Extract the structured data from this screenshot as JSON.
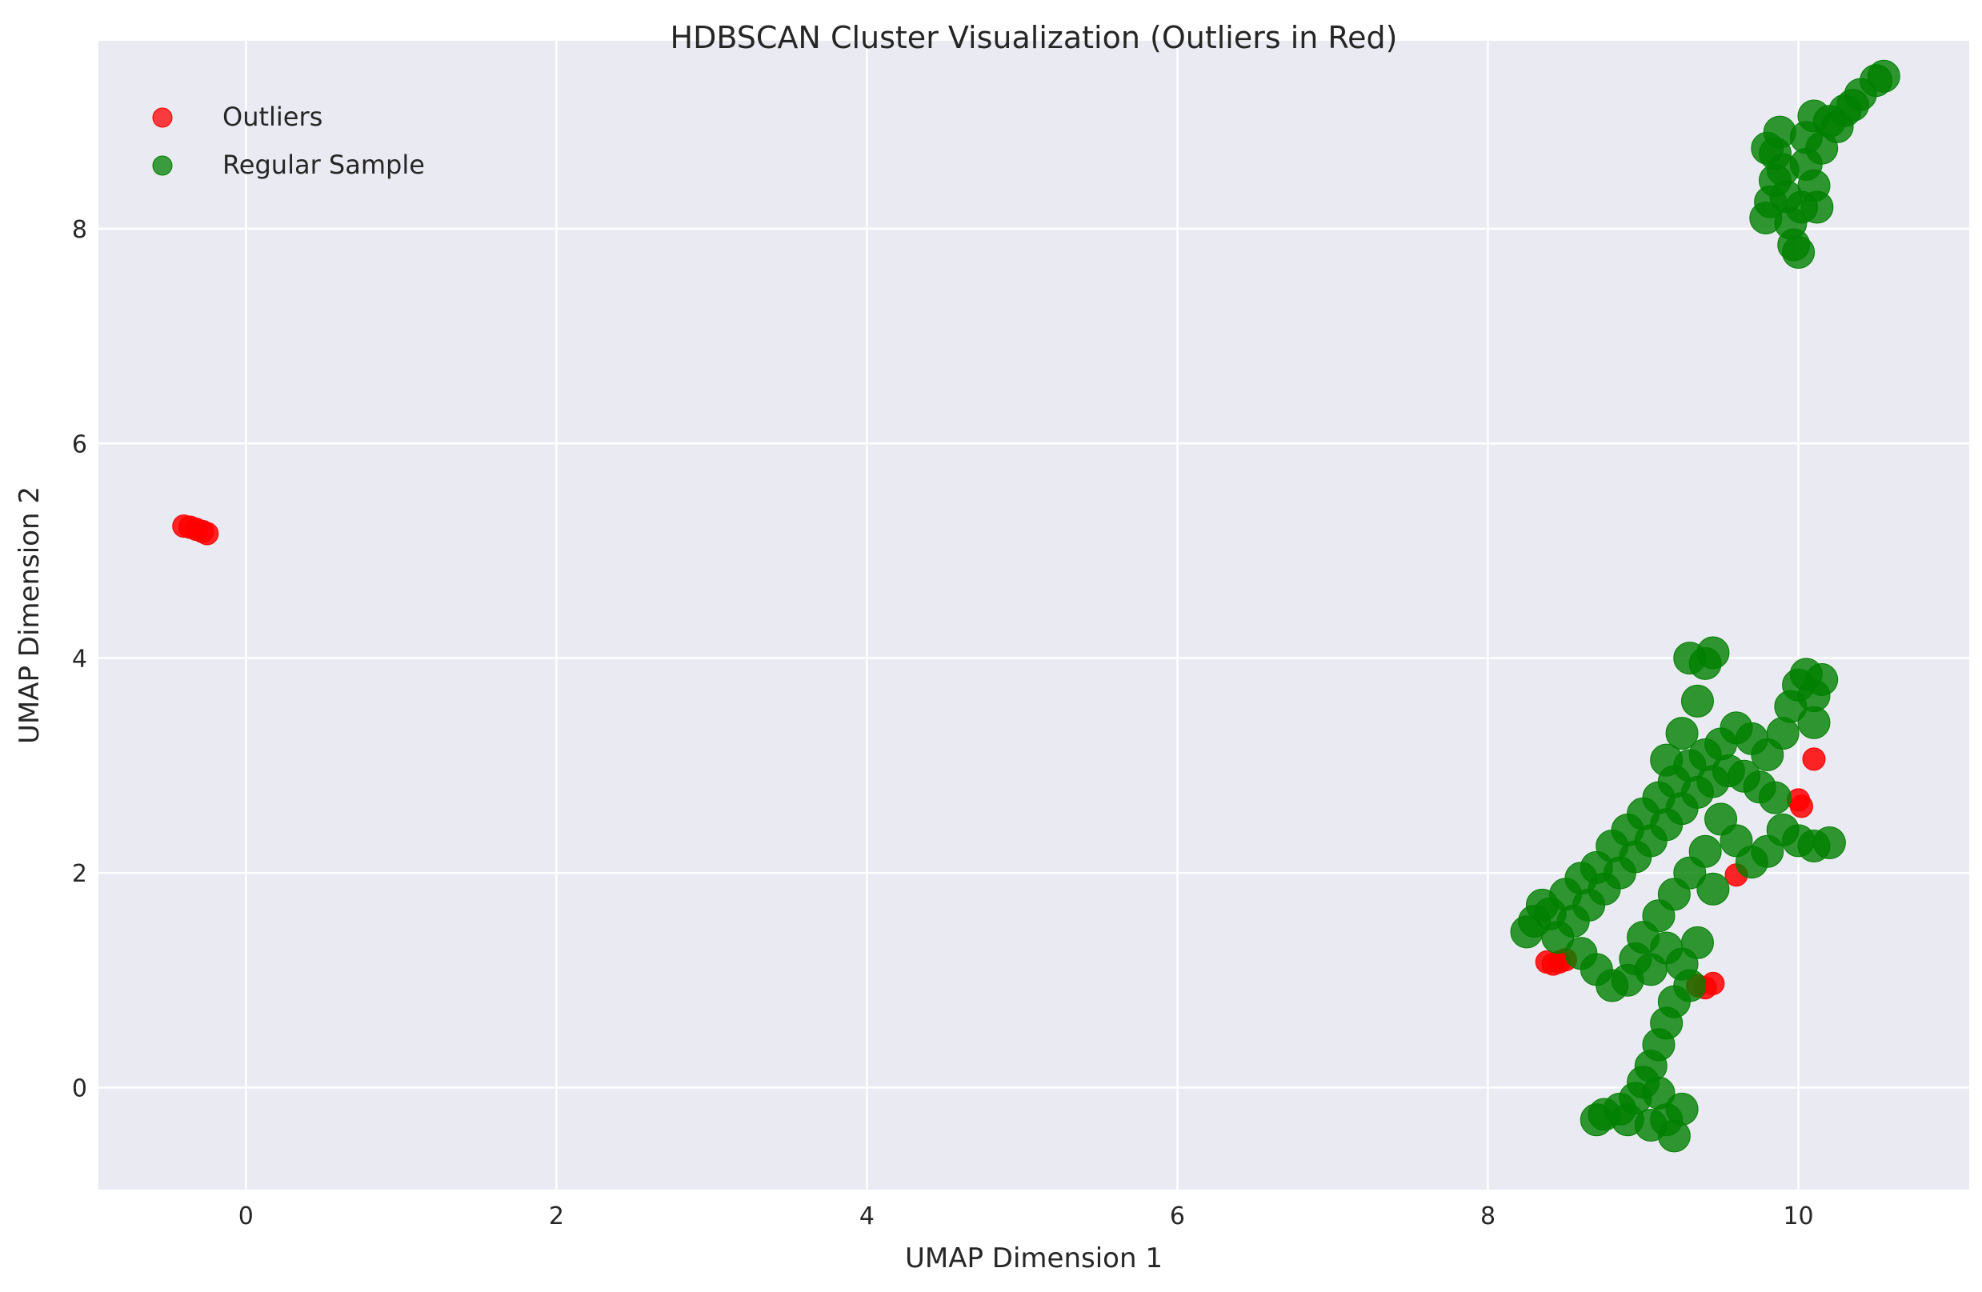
{
  "chart_data": {
    "type": "scatter",
    "title": "HDBSCAN Cluster Visualization (Outliers in Red)",
    "xlabel": "UMAP Dimension 1",
    "ylabel": "UMAP Dimension 2",
    "xlim": [
      -0.95,
      11.1
    ],
    "ylim": [
      -0.95,
      9.75
    ],
    "xticks": [
      0,
      2,
      4,
      6,
      8,
      10
    ],
    "yticks": [
      0,
      2,
      4,
      6,
      8
    ],
    "grid": true,
    "legend_position": "top-left",
    "background_color": "#eaeaf2",
    "series": [
      {
        "name": "Outliers",
        "color": "#ff0000",
        "points": [
          [
            -0.4,
            5.23
          ],
          [
            -0.36,
            5.22
          ],
          [
            -0.32,
            5.2
          ],
          [
            -0.28,
            5.18
          ],
          [
            -0.25,
            5.16
          ],
          [
            8.38,
            1.17
          ],
          [
            8.42,
            1.15
          ],
          [
            8.46,
            1.17
          ],
          [
            8.5,
            1.19
          ],
          [
            10.1,
            3.06
          ],
          [
            10.0,
            2.68
          ],
          [
            10.02,
            2.62
          ],
          [
            9.6,
            1.98
          ],
          [
            9.35,
            0.95
          ],
          [
            9.4,
            0.93
          ],
          [
            9.45,
            0.97
          ]
        ]
      },
      {
        "name": "Regular Sample",
        "color": "#008000",
        "points": [
          [
            9.79,
            8.1
          ],
          [
            9.82,
            8.25
          ],
          [
            9.85,
            8.45
          ],
          [
            9.85,
            8.7
          ],
          [
            9.9,
            8.55
          ],
          [
            9.92,
            8.3
          ],
          [
            9.95,
            8.05
          ],
          [
            9.97,
            7.85
          ],
          [
            10.0,
            7.78
          ],
          [
            10.02,
            8.2
          ],
          [
            10.05,
            8.6
          ],
          [
            10.05,
            8.85
          ],
          [
            10.1,
            8.4
          ],
          [
            10.15,
            8.75
          ],
          [
            10.2,
            9.0
          ],
          [
            10.3,
            9.1
          ],
          [
            10.4,
            9.25
          ],
          [
            10.5,
            9.38
          ],
          [
            10.55,
            9.42
          ],
          [
            10.1,
            9.05
          ],
          [
            10.25,
            8.95
          ],
          [
            10.35,
            9.15
          ],
          [
            9.88,
            8.9
          ],
          [
            9.8,
            8.75
          ],
          [
            10.12,
            8.2
          ],
          [
            8.25,
            1.45
          ],
          [
            8.3,
            1.55
          ],
          [
            8.35,
            1.7
          ],
          [
            8.4,
            1.62
          ],
          [
            8.45,
            1.4
          ],
          [
            8.5,
            1.8
          ],
          [
            8.55,
            1.55
          ],
          [
            8.6,
            1.95
          ],
          [
            8.65,
            1.7
          ],
          [
            8.7,
            2.05
          ],
          [
            8.75,
            1.85
          ],
          [
            8.8,
            2.25
          ],
          [
            8.85,
            2.0
          ],
          [
            8.9,
            2.4
          ],
          [
            8.95,
            2.15
          ],
          [
            9.0,
            2.55
          ],
          [
            9.05,
            2.3
          ],
          [
            9.1,
            2.7
          ],
          [
            9.15,
            2.45
          ],
          [
            9.2,
            2.85
          ],
          [
            9.25,
            2.6
          ],
          [
            9.3,
            3.0
          ],
          [
            9.35,
            2.75
          ],
          [
            9.4,
            3.1
          ],
          [
            9.45,
            2.85
          ],
          [
            9.5,
            3.2
          ],
          [
            9.55,
            2.95
          ],
          [
            9.6,
            3.35
          ],
          [
            9.65,
            2.9
          ],
          [
            9.7,
            3.25
          ],
          [
            9.75,
            2.8
          ],
          [
            9.8,
            3.1
          ],
          [
            9.85,
            2.7
          ],
          [
            9.9,
            3.3
          ],
          [
            9.95,
            3.55
          ],
          [
            10.0,
            3.75
          ],
          [
            10.05,
            3.85
          ],
          [
            10.1,
            3.65
          ],
          [
            10.15,
            3.8
          ],
          [
            10.1,
            3.4
          ],
          [
            9.9,
            2.4
          ],
          [
            10.0,
            2.3
          ],
          [
            10.1,
            2.25
          ],
          [
            10.2,
            2.28
          ],
          [
            9.8,
            2.2
          ],
          [
            9.7,
            2.1
          ],
          [
            9.6,
            2.3
          ],
          [
            9.5,
            2.5
          ],
          [
            9.4,
            2.2
          ],
          [
            9.3,
            2.0
          ],
          [
            9.2,
            1.8
          ],
          [
            9.1,
            1.6
          ],
          [
            9.0,
            1.4
          ],
          [
            8.95,
            1.2
          ],
          [
            8.9,
            1.0
          ],
          [
            9.05,
            1.1
          ],
          [
            9.15,
            1.3
          ],
          [
            9.25,
            1.15
          ],
          [
            9.35,
            1.35
          ],
          [
            9.3,
            0.95
          ],
          [
            9.2,
            0.8
          ],
          [
            9.15,
            0.6
          ],
          [
            9.1,
            0.4
          ],
          [
            9.05,
            0.2
          ],
          [
            9.0,
            0.05
          ],
          [
            8.95,
            -0.1
          ],
          [
            8.85,
            -0.2
          ],
          [
            8.75,
            -0.25
          ],
          [
            8.7,
            -0.3
          ],
          [
            8.9,
            -0.3
          ],
          [
            9.05,
            -0.35
          ],
          [
            9.15,
            -0.3
          ],
          [
            9.2,
            -0.45
          ],
          [
            9.25,
            -0.2
          ],
          [
            9.1,
            -0.05
          ],
          [
            9.3,
            4.0
          ],
          [
            9.4,
            3.95
          ],
          [
            9.45,
            4.05
          ],
          [
            9.35,
            3.6
          ],
          [
            9.25,
            3.3
          ],
          [
            9.15,
            3.05
          ],
          [
            8.6,
            1.25
          ],
          [
            8.7,
            1.1
          ],
          [
            8.8,
            0.95
          ],
          [
            9.45,
            1.85
          ]
        ]
      }
    ]
  }
}
